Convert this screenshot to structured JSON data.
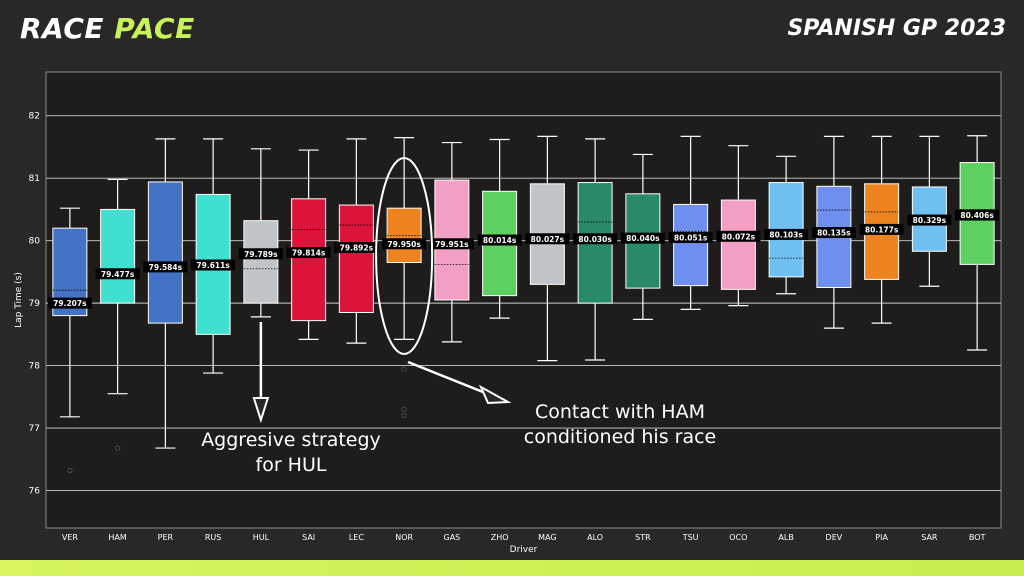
{
  "header": {
    "title_part1": "RACE",
    "title_part2": "PACE",
    "event": "SPANISH GP 2023"
  },
  "annotations": {
    "hul_line1": "Aggresive strategy",
    "hul_line2": "for HUL",
    "nor_line1": "Contact with HAM",
    "nor_line2": "conditioned his race"
  },
  "chart_data": {
    "type": "box",
    "xlabel": "Driver",
    "ylabel": "Lap Time (s)",
    "ylim": [
      75.4,
      82.7
    ],
    "yticks": [
      76,
      77,
      78,
      79,
      80,
      81,
      82
    ],
    "grid": true,
    "drivers": [
      {
        "name": "VER",
        "color": "#4472c4",
        "whislo": 77.18,
        "q1": 78.8,
        "med": 79.0,
        "q3": 80.2,
        "whishi": 80.52,
        "mean": 79.207,
        "label": "79.207s",
        "fliers": [
          76.32
        ]
      },
      {
        "name": "HAM",
        "color": "#40e0d0",
        "whislo": 77.55,
        "q1": 79.0,
        "med": 79.47,
        "q3": 80.5,
        "whishi": 80.98,
        "mean": 79.477,
        "label": "79.477s",
        "fliers": [
          76.68
        ]
      },
      {
        "name": "PER",
        "color": "#4472c4",
        "whislo": 76.68,
        "q1": 78.68,
        "med": 79.58,
        "q3": 80.94,
        "whishi": 81.63,
        "mean": 79.584,
        "label": "79.584s",
        "fliers": []
      },
      {
        "name": "RUS",
        "color": "#40e0d0",
        "whislo": 77.88,
        "q1": 78.5,
        "med": 79.61,
        "q3": 80.74,
        "whishi": 81.63,
        "mean": 79.611,
        "label": "79.611s",
        "fliers": []
      },
      {
        "name": "HUL",
        "color": "#c2c5c8",
        "whislo": 78.78,
        "q1": 79.0,
        "med": 79.79,
        "q3": 80.32,
        "whishi": 81.47,
        "mean": 79.55,
        "label": "79.789s",
        "fliers": []
      },
      {
        "name": "SAI",
        "color": "#dc143c",
        "whislo": 78.42,
        "q1": 78.72,
        "med": 79.81,
        "q3": 80.67,
        "whishi": 81.45,
        "mean": 80.18,
        "label": "79.814s",
        "fliers": []
      },
      {
        "name": "LEC",
        "color": "#dc143c",
        "whislo": 78.36,
        "q1": 78.85,
        "med": 79.89,
        "q3": 80.57,
        "whishi": 81.63,
        "mean": 80.25,
        "label": "79.892s",
        "fliers": []
      },
      {
        "name": "NOR",
        "color": "#ee8420",
        "whislo": 78.42,
        "q1": 79.65,
        "med": 79.95,
        "q3": 80.52,
        "whishi": 81.65,
        "mean": 80.08,
        "label": "79.950s",
        "fliers": [
          77.94,
          77.3,
          77.2
        ]
      },
      {
        "name": "GAS",
        "color": "#f39ec4",
        "whislo": 78.38,
        "q1": 79.05,
        "med": 79.95,
        "q3": 80.97,
        "whishi": 81.57,
        "mean": 79.62,
        "label": "79.951s",
        "fliers": []
      },
      {
        "name": "ZHO",
        "color": "#5dd062",
        "whislo": 78.76,
        "q1": 79.12,
        "med": 80.01,
        "q3": 80.79,
        "whishi": 81.62,
        "mean": 80.02,
        "label": "80.014s",
        "fliers": []
      },
      {
        "name": "MAG",
        "color": "#c2c5c8",
        "whislo": 78.08,
        "q1": 79.3,
        "med": 80.03,
        "q3": 80.91,
        "whishi": 81.67,
        "mean": 80.03,
        "label": "80.027s",
        "fliers": []
      },
      {
        "name": "ALO",
        "color": "#2a8a68",
        "whislo": 78.09,
        "q1": 79.0,
        "med": 80.03,
        "q3": 80.93,
        "whishi": 81.63,
        "mean": 80.3,
        "label": "80.030s",
        "fliers": []
      },
      {
        "name": "STR",
        "color": "#2a8a68",
        "whislo": 78.74,
        "q1": 79.24,
        "med": 80.04,
        "q3": 80.75,
        "whishi": 81.38,
        "mean": 80.06,
        "label": "80.040s",
        "fliers": []
      },
      {
        "name": "TSU",
        "color": "#6e8ef0",
        "whislo": 78.9,
        "q1": 79.28,
        "med": 80.05,
        "q3": 80.58,
        "whishi": 81.67,
        "mean": 80.15,
        "label": "80.051s",
        "fliers": []
      },
      {
        "name": "OCO",
        "color": "#f39ec4",
        "whislo": 78.96,
        "q1": 79.22,
        "med": 80.07,
        "q3": 80.65,
        "whishi": 81.52,
        "mean": 80.07,
        "label": "80.072s",
        "fliers": []
      },
      {
        "name": "ALB",
        "color": "#6ec0f2",
        "whislo": 79.15,
        "q1": 79.42,
        "med": 80.1,
        "q3": 80.93,
        "whishi": 81.35,
        "mean": 79.72,
        "label": "80.103s",
        "fliers": []
      },
      {
        "name": "DEV",
        "color": "#6e8ef0",
        "whislo": 78.6,
        "q1": 79.25,
        "med": 80.13,
        "q3": 80.87,
        "whishi": 81.67,
        "mean": 80.49,
        "label": "80.135s",
        "fliers": []
      },
      {
        "name": "PIA",
        "color": "#ee8420",
        "whislo": 78.68,
        "q1": 79.38,
        "med": 80.18,
        "q3": 80.91,
        "whishi": 81.67,
        "mean": 80.46,
        "label": "80.177s",
        "fliers": []
      },
      {
        "name": "SAR",
        "color": "#6ec0f2",
        "whislo": 79.27,
        "q1": 79.83,
        "med": 80.33,
        "q3": 80.86,
        "whishi": 81.67,
        "mean": 80.28,
        "label": "80.329s",
        "fliers": []
      },
      {
        "name": "BOT",
        "color": "#5dd062",
        "whislo": 78.25,
        "q1": 79.62,
        "med": 80.41,
        "q3": 81.25,
        "whishi": 81.68,
        "mean": 80.5,
        "label": "80.406s",
        "fliers": []
      }
    ]
  }
}
